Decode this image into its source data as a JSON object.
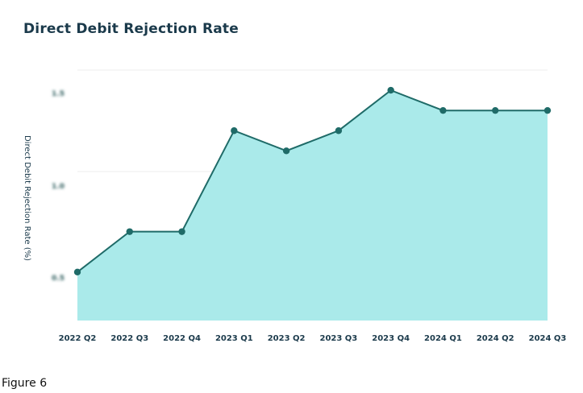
{
  "figure_label": "Figure 6",
  "chart_data": {
    "type": "area",
    "title": "Direct Debit Rejection Rate",
    "xlabel": "",
    "ylabel": "Direct Debit Rejection Rate (%)",
    "categories": [
      "2022 Q2",
      "2022 Q3",
      "2022 Q4",
      "2023 Q1",
      "2023 Q2",
      "2023 Q3",
      "2023 Q4",
      "2024 Q1",
      "2024 Q2",
      "2024 Q3"
    ],
    "series": [
      {
        "values": [
          0.6,
          0.8,
          0.8,
          1.3,
          1.2,
          1.3,
          1.5,
          1.4,
          1.4,
          1.4
        ]
      }
    ],
    "ylim": [
      0.36,
      1.6
    ],
    "yticks": [
      0.5,
      1.0,
      1.5
    ],
    "ytick_labels": [
      "0.5",
      "1.0",
      "1.5"
    ],
    "ytick_labels_obscured": true,
    "grid": true,
    "legend": "none",
    "colors": {
      "line": "#1f6b68",
      "fill": "#aaeaea",
      "marker": "#1f6b68",
      "grid": "#eeeeee",
      "text": "#1b3a4b"
    }
  }
}
